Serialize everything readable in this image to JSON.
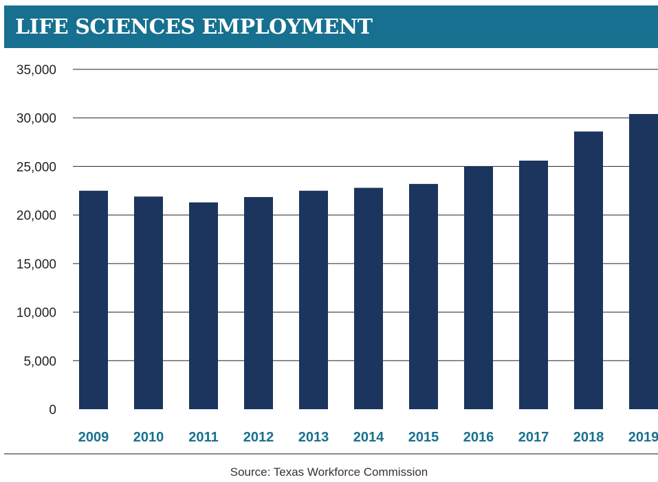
{
  "header": {
    "title": "LIFE SCIENCES EMPLOYMENT"
  },
  "footer": {
    "source": "Source: Texas Workforce Commission"
  },
  "colors": {
    "header_bg": "#17708f",
    "bar": "#1b355e",
    "category_label": "#17708f",
    "grid": "#222222"
  },
  "chart_data": {
    "type": "bar",
    "title": "LIFE SCIENCES EMPLOYMENT",
    "xlabel": "",
    "ylabel": "",
    "categories": [
      "2009",
      "2010",
      "2011",
      "2012",
      "2013",
      "2014",
      "2015",
      "2016",
      "2017",
      "2018",
      "2019"
    ],
    "values": [
      22500,
      21900,
      21300,
      21850,
      22500,
      22800,
      23200,
      25000,
      25600,
      28600,
      30400
    ],
    "ylim": [
      0,
      35000
    ],
    "yticks": [
      0,
      5000,
      10000,
      15000,
      20000,
      25000,
      30000,
      35000
    ],
    "ytick_labels": [
      "0",
      "5,000",
      "10,000",
      "15,000",
      "20,000",
      "25,000",
      "30,000",
      "35,000"
    ],
    "grid": true,
    "legend": "none"
  }
}
